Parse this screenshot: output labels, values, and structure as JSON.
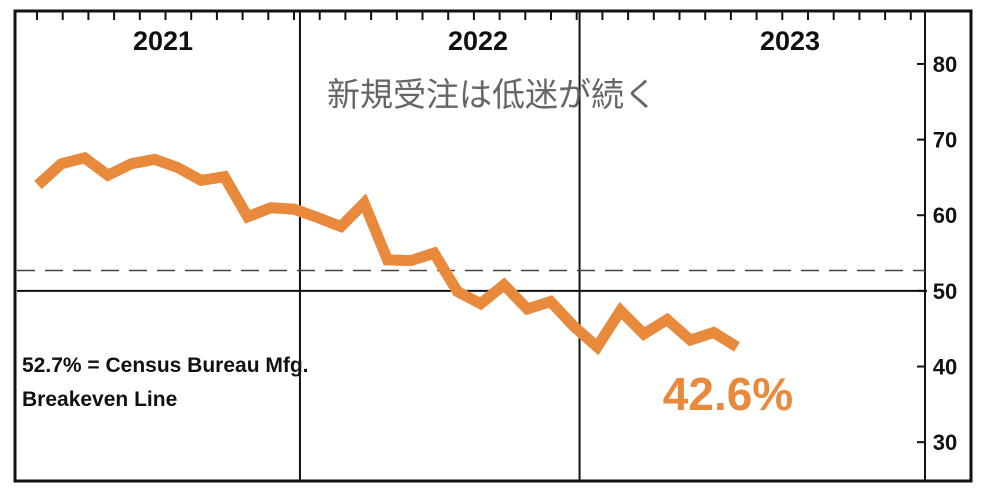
{
  "chart_data": {
    "type": "line",
    "title": "新規受注は低迷が続く",
    "year_labels": [
      "2021",
      "2022",
      "2023"
    ],
    "y_ticks": [
      "80",
      "70",
      "60",
      "50",
      "40",
      "30"
    ],
    "ylim": [
      25,
      87
    ],
    "y_tick_values": [
      80,
      70,
      60,
      50,
      40,
      30
    ],
    "reference_line": {
      "value": 52.7,
      "label_line1": "52.7% = Census Bureau Mfg.",
      "label_line2": "Breakeven Line"
    },
    "axis_line_value": 50,
    "last_value_label": "42.6%",
    "series": [
      {
        "color": "#e8893c",
        "x": [
          "2021-01",
          "2021-02",
          "2021-03",
          "2021-04",
          "2021-05",
          "2021-06",
          "2021-07",
          "2021-08",
          "2021-09",
          "2021-10",
          "2021-11",
          "2021-12",
          "2022-01",
          "2022-02",
          "2022-03",
          "2022-04",
          "2022-05",
          "2022-06",
          "2022-07",
          "2022-08",
          "2022-09",
          "2022-10",
          "2022-11",
          "2022-12",
          "2023-01",
          "2023-02",
          "2023-03",
          "2023-04",
          "2023-05",
          "2023-06",
          "2023-07"
        ],
        "values": [
          64.0,
          66.8,
          67.6,
          65.3,
          66.8,
          67.4,
          66.3,
          64.6,
          65.1,
          59.8,
          61.0,
          60.8,
          59.7,
          58.5,
          61.6,
          54.1,
          54.0,
          55.0,
          49.9,
          48.3,
          50.8,
          47.6,
          48.6,
          45.3,
          42.6,
          47.4,
          44.3,
          46.2,
          43.5,
          44.5,
          42.6
        ]
      }
    ],
    "grid": false,
    "colors": {
      "line": "#e8893c",
      "frame": "#111111",
      "reference": "#444444"
    }
  }
}
